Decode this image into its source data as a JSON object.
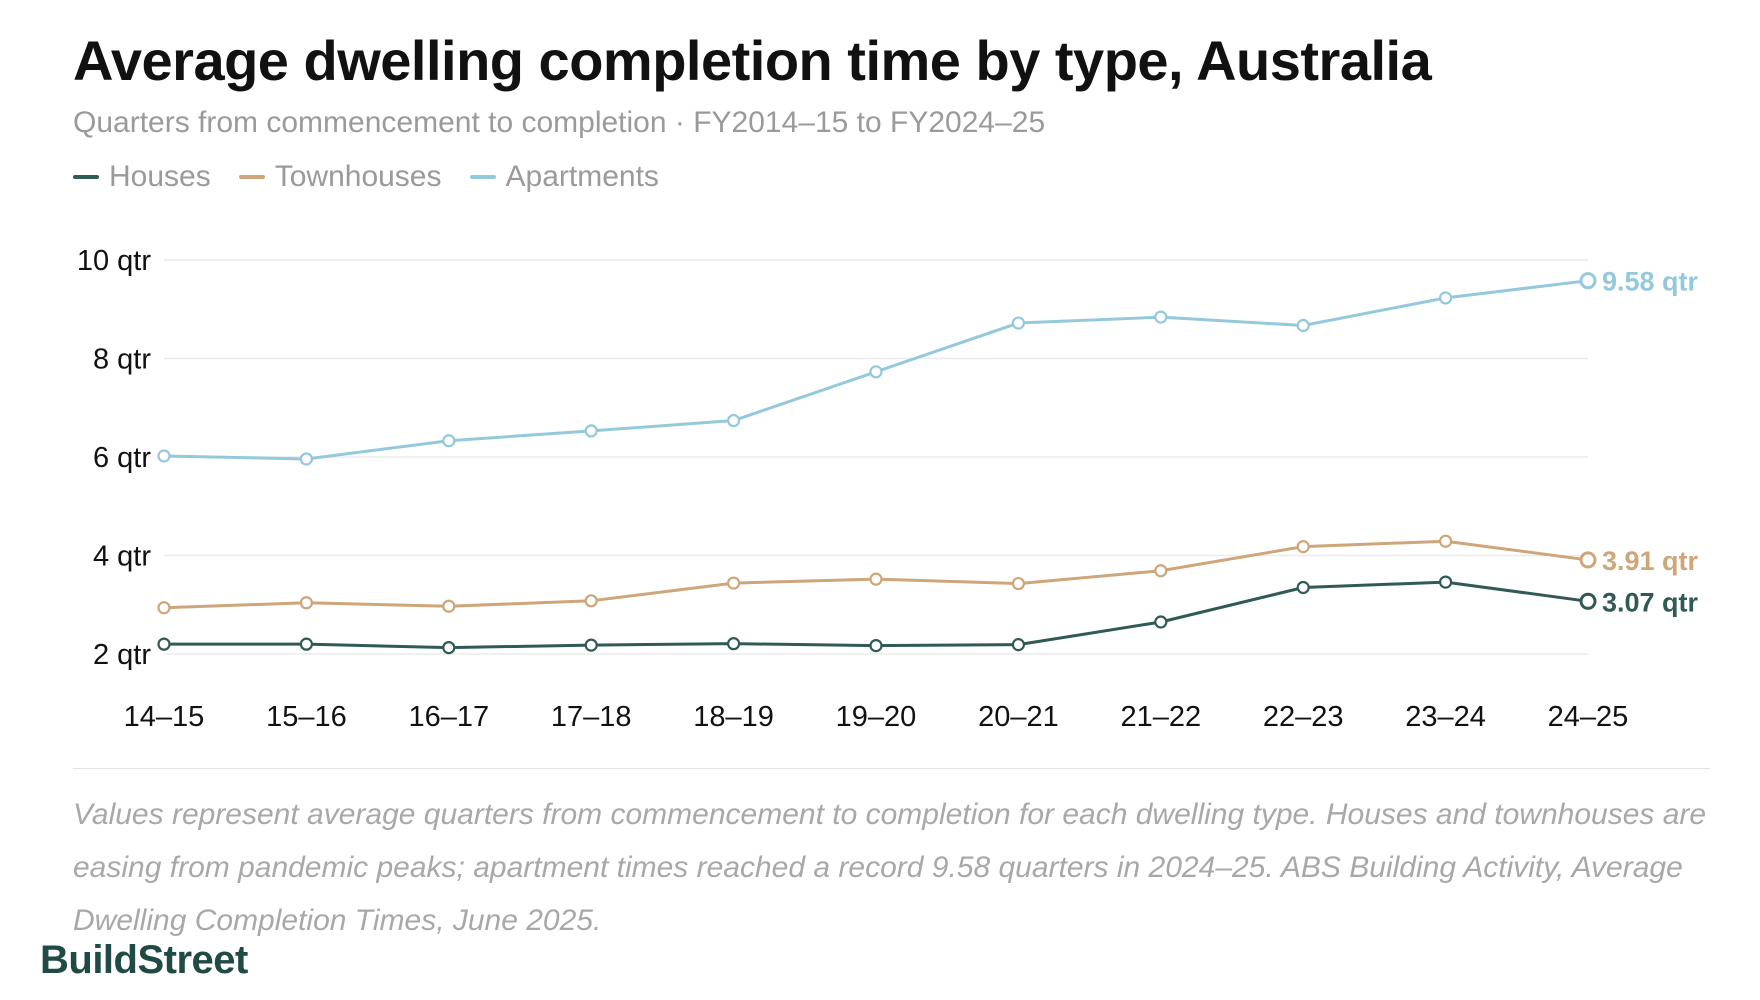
{
  "title": "Average dwelling completion time by type, Australia",
  "subtitle": "Quarters from commencement to completion · FY2014–15 to FY2024–25",
  "footnote": "Values represent average quarters from commencement to completion for each dwelling type. Houses and townhouses are easing from pandemic peaks; apartment times reached a record 9.58 quarters in 2024–25. ABS Building Activity, Average Dwelling Completion Times, June 2025.",
  "brand": "BuildStreet",
  "chart_data": {
    "type": "line",
    "categories": [
      "14–15",
      "15–16",
      "16–17",
      "17–18",
      "18–19",
      "19–20",
      "20–21",
      "21–22",
      "22–23",
      "23–24",
      "24–25"
    ],
    "ylim": [
      2,
      10
    ],
    "yticks": [
      10,
      8,
      6,
      4,
      2
    ],
    "ytick_labels": [
      "10 qtr",
      "8 qtr",
      "6 qtr",
      "4 qtr",
      "2 qtr"
    ],
    "grid": true,
    "legend": "top-left",
    "series": [
      {
        "name": "Houses",
        "color": "#2f5a56",
        "values": [
          2.2,
          2.2,
          2.13,
          2.18,
          2.21,
          2.17,
          2.19,
          2.65,
          3.35,
          3.46,
          3.07
        ],
        "end_label": "3.07 qtr"
      },
      {
        "name": "Townhouses",
        "color": "#cfa57a",
        "values": [
          2.94,
          3.04,
          2.97,
          3.08,
          3.44,
          3.52,
          3.43,
          3.69,
          4.18,
          4.29,
          3.91
        ],
        "end_label": "3.91 qtr"
      },
      {
        "name": "Apartments",
        "color": "#94c9dc",
        "values": [
          6.02,
          5.96,
          6.33,
          6.53,
          6.74,
          7.73,
          8.72,
          8.84,
          8.67,
          9.23,
          9.58
        ],
        "end_label": "9.58 qtr"
      }
    ]
  }
}
